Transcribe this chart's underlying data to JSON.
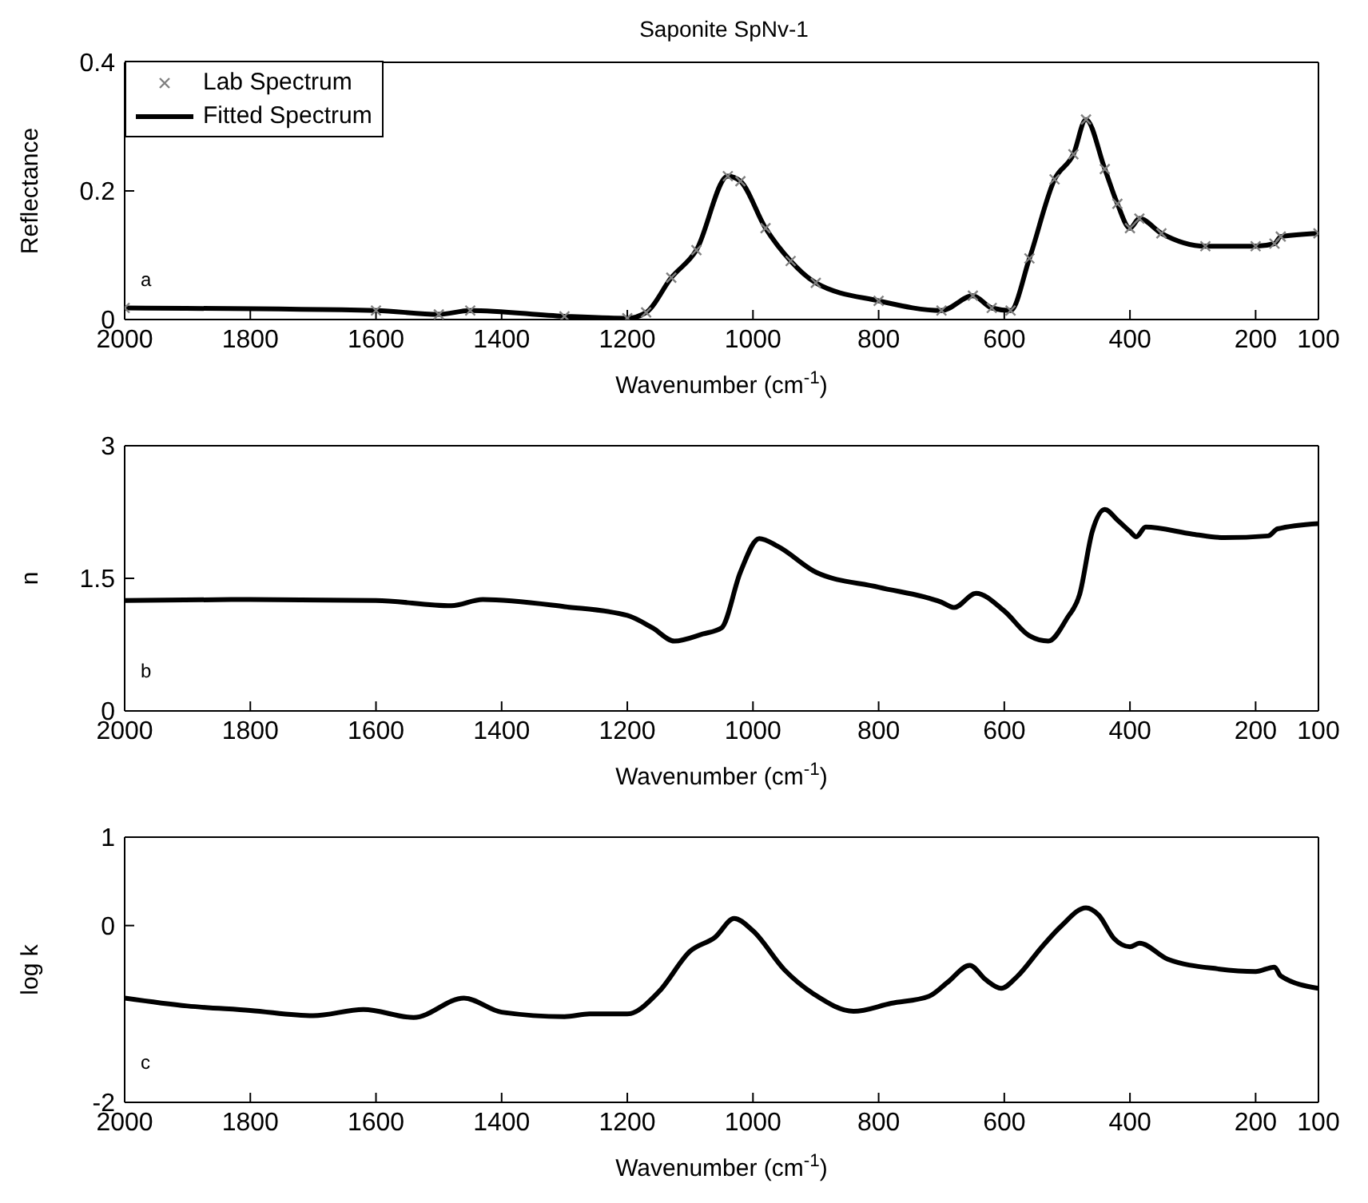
{
  "chart_data": [
    {
      "type": "line",
      "title": "Saponite SpNv-1",
      "xlabel": "Wavenumber (cm$^{-1}$)",
      "ylabel": "Reflectance",
      "annotations": [
        "a"
      ],
      "xlim": [
        2000,
        100
      ],
      "xticks": [
        2000,
        1800,
        1600,
        1400,
        1200,
        1000,
        800,
        600,
        400,
        200,
        100
      ],
      "ylim": [
        0,
        0.4
      ],
      "yticks": [
        0,
        0.2,
        0.4
      ],
      "legend": "top left",
      "grid": false,
      "x": [
        2000,
        1600,
        1500,
        1450,
        1300,
        1200,
        1170,
        1130,
        1090,
        1040,
        1020,
        980,
        940,
        900,
        800,
        700,
        650,
        620,
        590,
        560,
        520,
        490,
        470,
        440,
        420,
        400,
        385,
        350,
        280,
        200,
        170,
        160,
        100
      ],
      "series": [
        {
          "name": "Lab Spectrum",
          "type": "scatter",
          "marker": "cross",
          "color": "#808080",
          "values": [
            0.018,
            0.014,
            0.008,
            0.014,
            0.005,
            0.002,
            0.011,
            0.065,
            0.108,
            0.223,
            0.215,
            0.142,
            0.091,
            0.057,
            0.029,
            0.014,
            0.037,
            0.018,
            0.014,
            0.095,
            0.218,
            0.257,
            0.311,
            0.234,
            0.18,
            0.142,
            0.157,
            0.134,
            0.114,
            0.114,
            0.118,
            0.129,
            0.134
          ]
        },
        {
          "name": "Fitted Spectrum",
          "marker": "none",
          "color": "#000000",
          "values": [
            0.018,
            0.014,
            0.008,
            0.014,
            0.005,
            0.002,
            0.011,
            0.065,
            0.108,
            0.223,
            0.215,
            0.142,
            0.091,
            0.057,
            0.029,
            0.014,
            0.037,
            0.018,
            0.014,
            0.095,
            0.218,
            0.257,
            0.311,
            0.234,
            0.18,
            0.142,
            0.157,
            0.134,
            0.114,
            0.114,
            0.118,
            0.129,
            0.134
          ]
        }
      ]
    },
    {
      "type": "line",
      "xlabel": "Wavenumber (cm$^{-1}$)",
      "ylabel": "n",
      "annotations": [
        "b"
      ],
      "xlim": [
        2000,
        100
      ],
      "xticks": [
        2000,
        1800,
        1600,
        1400,
        1200,
        1000,
        800,
        600,
        400,
        200,
        100
      ],
      "ylim": [
        0,
        3
      ],
      "yticks": [
        0,
        1.5,
        3
      ],
      "grid": false,
      "x": [
        2000,
        1800,
        1600,
        1480,
        1430,
        1300,
        1200,
        1160,
        1125,
        1080,
        1050,
        1020,
        990,
        960,
        900,
        800,
        700,
        680,
        645,
        600,
        560,
        530,
        500,
        480,
        460,
        440,
        420,
        400,
        390,
        375,
        300,
        250,
        180,
        165,
        100
      ],
      "series": [
        {
          "marker": "none",
          "color": "#000000",
          "values": [
            1.25,
            1.26,
            1.25,
            1.19,
            1.26,
            1.18,
            1.08,
            0.94,
            0.79,
            0.87,
            0.94,
            1.57,
            1.95,
            1.86,
            1.57,
            1.4,
            1.23,
            1.17,
            1.33,
            1.13,
            0.85,
            0.79,
            1.05,
            1.32,
            2.03,
            2.28,
            2.16,
            2.03,
            1.97,
            2.08,
            2.0,
            1.96,
            1.98,
            2.06,
            2.12
          ]
        }
      ]
    },
    {
      "type": "line",
      "xlabel": "Wavenumber (cm$^{-1}$)",
      "ylabel": "log k",
      "annotations": [
        "c"
      ],
      "xlim": [
        2000,
        100
      ],
      "xticks": [
        2000,
        1800,
        1600,
        1400,
        1200,
        1000,
        800,
        600,
        400,
        200,
        100
      ],
      "ylim": [
        -2,
        1
      ],
      "yticks": [
        -2,
        0,
        1
      ],
      "grid": false,
      "x": [
        2000,
        1900,
        1800,
        1700,
        1620,
        1540,
        1460,
        1400,
        1300,
        1260,
        1200,
        1150,
        1100,
        1060,
        1030,
        1000,
        950,
        900,
        840,
        780,
        720,
        690,
        655,
        630,
        605,
        580,
        540,
        510,
        470,
        450,
        425,
        400,
        385,
        340,
        260,
        200,
        170,
        160,
        100
      ],
      "series": [
        {
          "marker": "none",
          "color": "#000000",
          "values": [
            -0.82,
            -0.91,
            -0.96,
            -1.02,
            -0.95,
            -1.04,
            -0.82,
            -0.98,
            -1.03,
            -1.0,
            -1.0,
            -0.75,
            -0.29,
            -0.13,
            0.08,
            -0.06,
            -0.5,
            -0.79,
            -0.97,
            -0.88,
            -0.8,
            -0.64,
            -0.45,
            -0.61,
            -0.71,
            -0.58,
            -0.24,
            -0.01,
            0.2,
            0.12,
            -0.15,
            -0.24,
            -0.2,
            -0.38,
            -0.49,
            -0.52,
            -0.47,
            -0.57,
            -0.71
          ]
        }
      ]
    }
  ]
}
